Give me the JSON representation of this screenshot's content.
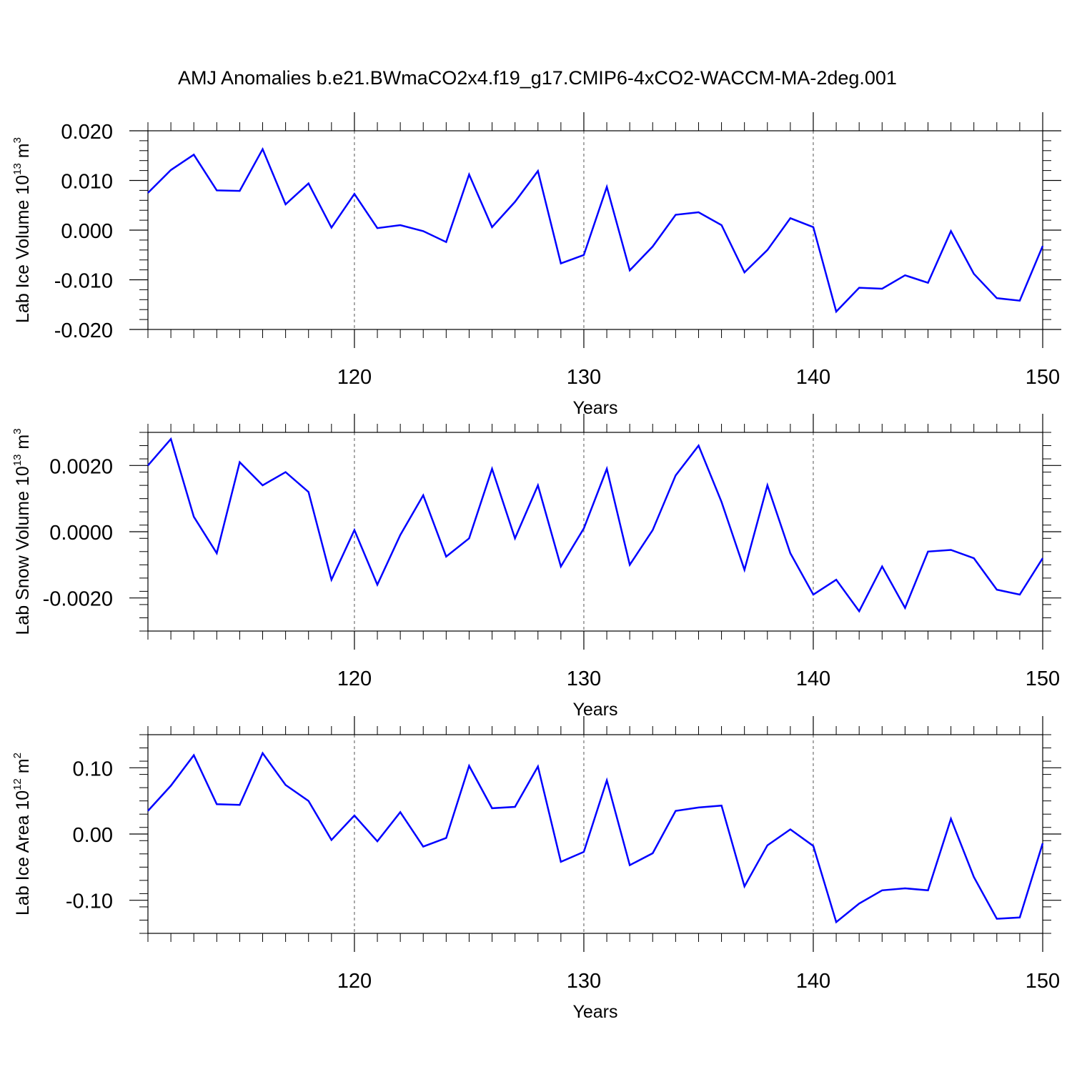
{
  "title": "AMJ Anomalies b.e21.BWmaCO2x4.f19_g17.CMIP6-4xCO2-WACCM-MA-2deg.001",
  "colors": {
    "series": "#0000ff",
    "axes": "#000000",
    "grid": "#555555"
  },
  "chart_data": [
    {
      "type": "line",
      "xlabel": "Years",
      "ylabel_base": "Lab Ice Volume 10",
      "ylabel_exp": "13",
      "ylabel_unit": " m",
      "ylabel_unit_exp": "3",
      "xlim": [
        111,
        150
      ],
      "ylim": [
        -0.02,
        0.02
      ],
      "x_ticks": [
        120,
        130,
        140,
        150
      ],
      "x_tick_labels": [
        "120",
        "130",
        "140",
        "150"
      ],
      "y_ticks": [
        0.02,
        0.01,
        0.0,
        -0.01,
        -0.02
      ],
      "y_tick_labels": [
        "0.020",
        "0.010",
        "0.000",
        "-0.010",
        "-0.020"
      ],
      "grid_x": [
        120,
        130,
        140
      ],
      "x": [
        111,
        112,
        113,
        114,
        115,
        116,
        117,
        118,
        119,
        120,
        121,
        122,
        123,
        124,
        125,
        126,
        127,
        128,
        129,
        130,
        131,
        132,
        133,
        134,
        135,
        136,
        137,
        138,
        139,
        140,
        141,
        142,
        143,
        144,
        145,
        146,
        147,
        148,
        149,
        150
      ],
      "y": [
        0.0075,
        0.0121,
        0.0152,
        0.008,
        0.0079,
        0.0163,
        0.0052,
        0.0094,
        0.0005,
        0.0073,
        0.0004,
        0.001,
        -0.0002,
        -0.0024,
        0.0112,
        0.0006,
        0.0057,
        0.0119,
        -0.0067,
        -0.005,
        0.0087,
        -0.0081,
        -0.0033,
        0.0031,
        0.0036,
        0.001,
        -0.0085,
        -0.004,
        0.0024,
        0.0006,
        -0.0164,
        -0.0116,
        -0.0118,
        -0.0091,
        -0.0106,
        -0.0002,
        -0.0088,
        -0.0137,
        -0.0142,
        -0.0032
      ]
    },
    {
      "type": "line",
      "xlabel": "Years",
      "ylabel_base": "Lab Snow Volume 10",
      "ylabel_exp": "13",
      "ylabel_unit": " m",
      "ylabel_unit_exp": "3",
      "xlim": [
        111,
        150
      ],
      "ylim": [
        -0.003,
        0.003
      ],
      "x_ticks": [
        120,
        130,
        140,
        150
      ],
      "x_tick_labels": [
        "120",
        "130",
        "140",
        "150"
      ],
      "y_ticks": [
        0.002,
        0.0,
        -0.002
      ],
      "y_tick_labels": [
        "0.0020",
        "0.0000",
        "-0.0020"
      ],
      "grid_x": [
        120,
        130,
        140
      ],
      "x": [
        111,
        112,
        113,
        114,
        115,
        116,
        117,
        118,
        119,
        120,
        121,
        122,
        123,
        124,
        125,
        126,
        127,
        128,
        129,
        130,
        131,
        132,
        133,
        134,
        135,
        136,
        137,
        138,
        139,
        140,
        141,
        142,
        143,
        144,
        145,
        146,
        147,
        148,
        149,
        150
      ],
      "y": [
        0.002,
        0.0028,
        0.00045,
        -0.00065,
        0.0021,
        0.0014,
        0.0018,
        0.0012,
        -0.00145,
        5e-05,
        -0.0016,
        -0.0001,
        0.0011,
        -0.00075,
        -0.0002,
        0.0019,
        -0.0002,
        0.0014,
        -0.00105,
        0.0001,
        0.0019,
        -0.001,
        5e-05,
        0.0017,
        0.0026,
        0.0009,
        -0.00115,
        0.0014,
        -0.00065,
        -0.0019,
        -0.00145,
        -0.0024,
        -0.00105,
        -0.0023,
        -0.0006,
        -0.00055,
        -0.0008,
        -0.00175,
        -0.0019,
        -0.0008
      ]
    },
    {
      "type": "line",
      "xlabel": "Years",
      "ylabel_base": "Lab Ice Area 10",
      "ylabel_exp": "12",
      "ylabel_unit": " m",
      "ylabel_unit_exp": "2",
      "xlim": [
        111,
        150
      ],
      "ylim": [
        -0.15,
        0.15
      ],
      "x_ticks": [
        120,
        130,
        140,
        150
      ],
      "x_tick_labels": [
        "120",
        "130",
        "140",
        "150"
      ],
      "y_ticks": [
        0.1,
        0.0,
        -0.1
      ],
      "y_tick_labels": [
        "0.10",
        "0.00",
        "-0.10"
      ],
      "grid_x": [
        120,
        130,
        140
      ],
      "x": [
        111,
        112,
        113,
        114,
        115,
        116,
        117,
        118,
        119,
        120,
        121,
        122,
        123,
        124,
        125,
        126,
        127,
        128,
        129,
        130,
        131,
        132,
        133,
        134,
        135,
        136,
        137,
        138,
        139,
        140,
        141,
        142,
        143,
        144,
        145,
        146,
        147,
        148,
        149,
        150
      ],
      "y": [
        0.035,
        0.073,
        0.119,
        0.045,
        0.044,
        0.122,
        0.074,
        0.05,
        -0.009,
        0.028,
        -0.011,
        0.033,
        -0.019,
        -0.006,
        0.103,
        0.039,
        0.041,
        0.102,
        -0.042,
        -0.027,
        0.081,
        -0.047,
        -0.029,
        0.035,
        0.04,
        0.043,
        -0.079,
        -0.017,
        0.007,
        -0.018,
        -0.133,
        -0.105,
        -0.085,
        -0.082,
        -0.085,
        0.023,
        -0.065,
        -0.128,
        -0.126,
        -0.014
      ]
    }
  ]
}
